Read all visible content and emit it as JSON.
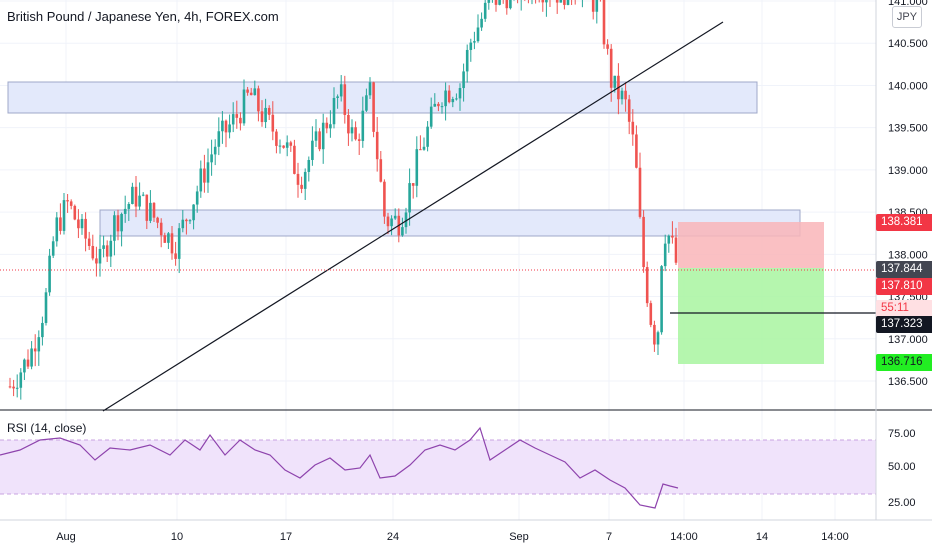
{
  "chart": {
    "title": "British Pound / Japanese Yen, 4h, FOREX.com",
    "currency_button": "JPY"
  },
  "chart_data": {
    "type": "candlestick",
    "symbol": "GBPJPY",
    "price_axis": {
      "ticks": [
        "141.000",
        "140.500",
        "140.000",
        "139.500",
        "139.000",
        "138.500",
        "138.000",
        "137.500",
        "137.000",
        "136.500"
      ],
      "range": [
        136.15,
        141.05
      ]
    },
    "time_axis": {
      "ticks": [
        "Aug",
        "10",
        "17",
        "24",
        "Sep",
        "7",
        "14:00",
        "14",
        "14:00"
      ]
    },
    "price_labels": [
      {
        "text": "138.381",
        "color": "#f23645",
        "text_color": "#ffffff"
      },
      {
        "text": "137.844",
        "color": "#434651",
        "text_color": "#ffffff"
      },
      {
        "text": "137.810",
        "color": "#f23645",
        "text_color": "#ffffff"
      },
      {
        "text": "55:11",
        "color": "#ffe0e3",
        "text_color": "#f23645"
      },
      {
        "text": "137.323",
        "color": "#131722",
        "text_color": "#ffffff"
      },
      {
        "text": "136.716",
        "color": "#22ee22",
        "text_color": "#131722"
      }
    ],
    "rsi": {
      "label": "RSI (14, close)",
      "ticks": [
        "75.00",
        "50.00",
        "25.00"
      ],
      "band": [
        30,
        70
      ],
      "range": [
        10,
        90
      ]
    },
    "colors": {
      "up": "#26a69a",
      "down": "#ef5350",
      "zone": "#e3e9fb",
      "zone_border": "#9fa8c8",
      "rsi_line": "#8e44ad",
      "rsi_band": "#f0e3fb"
    }
  }
}
